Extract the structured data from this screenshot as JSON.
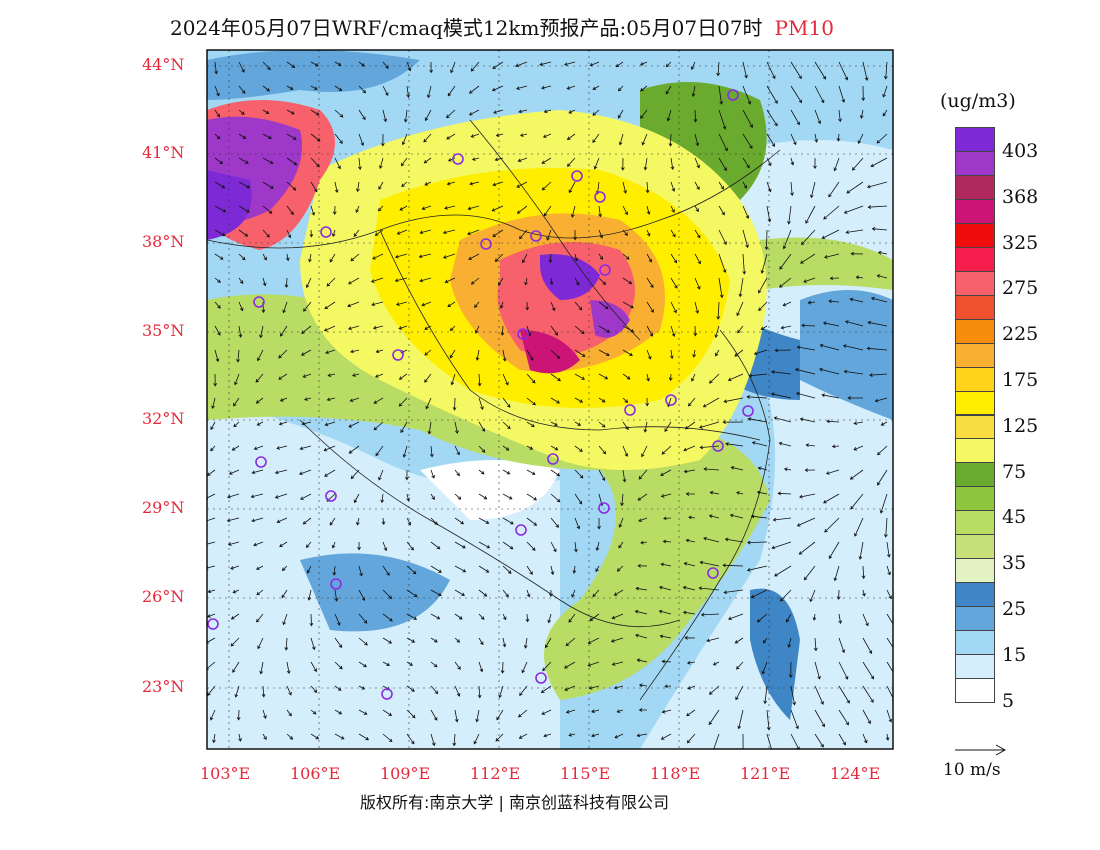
{
  "title": {
    "main": "2024年05月07日WRF/cmaq模式12km预报产品:05月07日07时",
    "variable": "PM10"
  },
  "legend": {
    "unit": "(ug/m3)",
    "labels": [
      "403",
      "368",
      "325",
      "275",
      "225",
      "175",
      "125",
      "75",
      "45",
      "35",
      "25",
      "15",
      "5"
    ],
    "colors": [
      "#7d2ad6",
      "#9e38c9",
      "#b0295c",
      "#cc1477",
      "#ee0c0c",
      "#f51e4d",
      "#f7616b",
      "#ee5030",
      "#f78d0d",
      "#f9b032",
      "#ffd319",
      "#ffee00",
      "#f7dd40",
      "#f3f863",
      "#6aaa2e",
      "#8ec63f",
      "#b9dc65",
      "#c6e07a",
      "#e2f2c2",
      "#3f86c6",
      "#62a6db",
      "#a2d8f4",
      "#d4eefb",
      "#ffffff"
    ]
  },
  "axes": {
    "lat_labels": [
      "44°N",
      "41°N",
      "38°N",
      "35°N",
      "32°N",
      "29°N",
      "26°N",
      "23°N"
    ],
    "lon_labels": [
      "103°E",
      "106°E",
      "109°E",
      "112°E",
      "115°E",
      "118°E",
      "121°E",
      "124°E"
    ]
  },
  "wind_reference": "10 m/s",
  "footer": "版权所有:南京大学 | 南京创蓝科技有限公司",
  "palette": {
    "accent": "#e5283a",
    "city_marker": "#8a2be2"
  }
}
